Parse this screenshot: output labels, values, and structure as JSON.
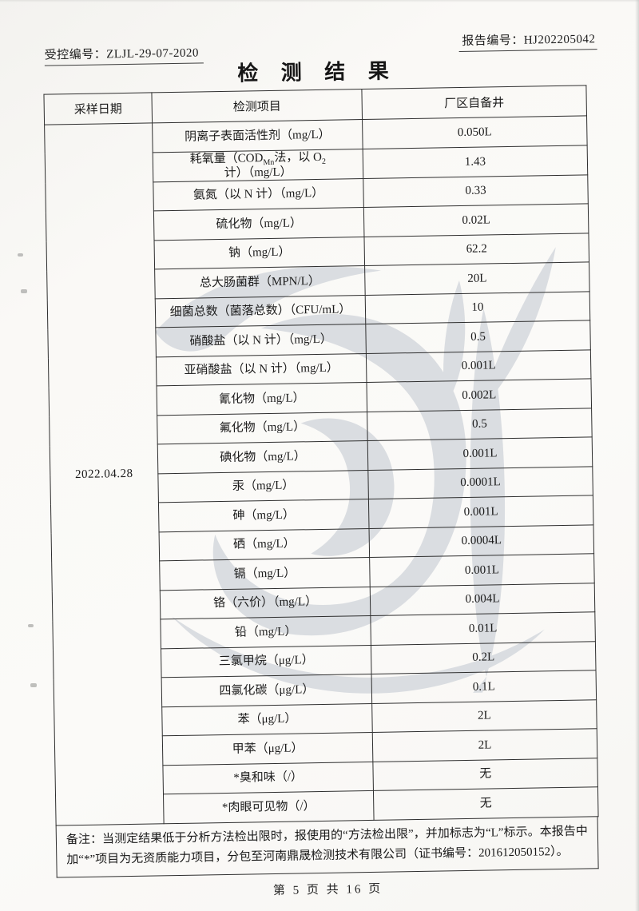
{
  "page": {
    "controlled_no": "受控编号：ZLJL-29-07-2020",
    "report_no": "报告编号：HJ202205042",
    "title": "检 测 结 果",
    "footer": "第 5 页 共 16 页"
  },
  "table": {
    "headers": [
      "采样日期",
      "检测项目",
      "厂区自备井"
    ],
    "sampling_date": "2022.04.28",
    "rows": [
      {
        "item": "阴离子表面活性剂（mg/L）",
        "value": "0.050L"
      },
      {
        "item": "耗氧量（CODMn法，以O2计）（mg/L）",
        "item_parts": [
          {
            "t": "耗氧量（COD"
          },
          {
            "t": "Mn",
            "sub": true
          },
          {
            "t": "法，以 O"
          },
          {
            "t": "2",
            "sub": true
          },
          {
            "t": "计）（mg/L）"
          }
        ],
        "value": "1.43"
      },
      {
        "item": "氨氮（以 N 计）（mg/L）",
        "value": "0.33"
      },
      {
        "item": "硫化物（mg/L）",
        "value": "0.02L"
      },
      {
        "item": "钠（mg/L）",
        "value": "62.2"
      },
      {
        "item": "总大肠菌群（MPN/L）",
        "value": "20L"
      },
      {
        "item": "细菌总数（菌落总数）（CFU/mL）",
        "value": "10"
      },
      {
        "item": "硝酸盐（以 N 计）（mg/L）",
        "value": "0.5"
      },
      {
        "item": "亚硝酸盐（以 N 计）（mg/L）",
        "value": "0.001L"
      },
      {
        "item": "氰化物（mg/L）",
        "value": "0.002L"
      },
      {
        "item": "氟化物（mg/L）",
        "value": "0.5"
      },
      {
        "item": "碘化物（mg/L）",
        "value": "0.001L"
      },
      {
        "item": "汞（mg/L）",
        "value": "0.0001L"
      },
      {
        "item": "砷（mg/L）",
        "value": "0.001L"
      },
      {
        "item": "硒（mg/L）",
        "value": "0.0004L"
      },
      {
        "item": "镉（mg/L）",
        "value": "0.001L"
      },
      {
        "item": "铬（六价）（mg/L）",
        "value": "0.004L"
      },
      {
        "item": "铅（mg/L）",
        "value": "0.01L"
      },
      {
        "item": "三氯甲烷（μg/L）",
        "value": "0.2L"
      },
      {
        "item": "四氯化碳（μg/L）",
        "value": "0.1L"
      },
      {
        "item": "苯（μg/L）",
        "value": "2L"
      },
      {
        "item": "甲苯（μg/L）",
        "value": "2L"
      },
      {
        "item": "*臭和味（/）",
        "value": "无"
      },
      {
        "item": "*肉眼可见物（/）",
        "value": "无"
      }
    ],
    "note": "备注：当测定结果低于分析方法检出限时，报使用的“方法检出限”，并加标志为“L”标示。本报告中加“*”项目为无资质能力项目，分包至河南鼎晟检测技术有限公司（证书编号：201612050152）。"
  },
  "watermark": {
    "name": "dingsheng-logo-watermark",
    "color": "#dadde1"
  }
}
